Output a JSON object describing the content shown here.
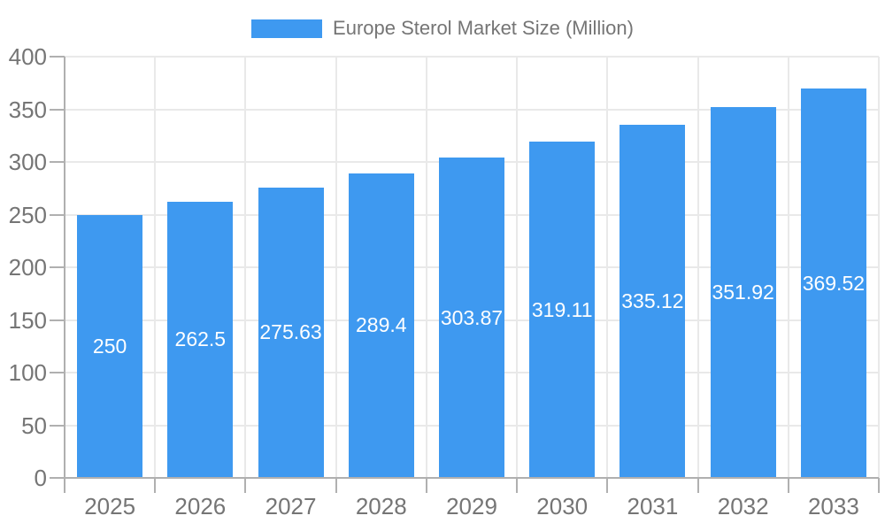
{
  "legend": {
    "label": "Europe Sterol Market Size (Million)"
  },
  "chart_data": {
    "type": "bar",
    "title": "Europe Sterol Market Size (Million)",
    "categories": [
      "2025",
      "2026",
      "2027",
      "2028",
      "2029",
      "2030",
      "2031",
      "2032",
      "2033"
    ],
    "values": [
      250,
      262.5,
      275.63,
      289.4,
      303.87,
      319.11,
      335.12,
      351.92,
      369.52
    ],
    "bar_labels": [
      "250",
      "262.5",
      "275.63",
      "289.4",
      "303.87",
      "319.11",
      "335.12",
      "351.92",
      "369.52"
    ],
    "xlabel": "",
    "ylabel": "",
    "ylim": [
      0,
      400
    ],
    "yticks": [
      0,
      50,
      100,
      150,
      200,
      250,
      300,
      350,
      400
    ],
    "grid": true,
    "legend_position": "top",
    "colors": {
      "bar": "#3E99F0",
      "bar_label": "#ffffff",
      "axis": "#b0b0b0",
      "gridline": "#e9e9e9",
      "tick_label": "#757575",
      "background": "#ffffff"
    }
  }
}
